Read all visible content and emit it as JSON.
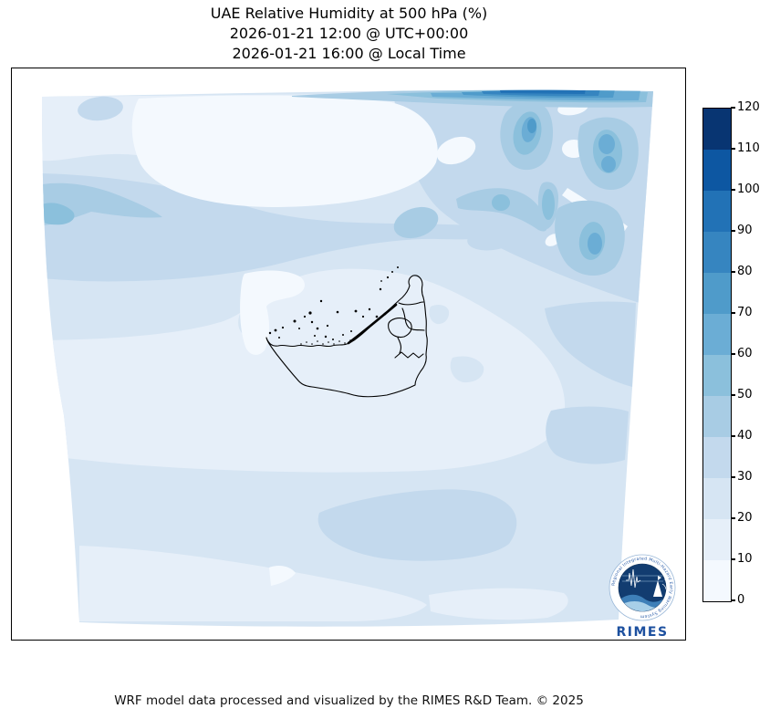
{
  "title": {
    "line1": "UAE Relative Humidity at 500 hPa (%)",
    "line2": "2026-01-21 12:00 @ UTC+00:00",
    "line3": "2026-01-21 16:00 @ Local Time"
  },
  "footer": "WRF model data processed and visualized by the RIMES R&D Team. © 2025",
  "logo": {
    "ring_text": "Regional Integrated Multi-Hazard Early Warning System",
    "wordmark": "RIMES"
  },
  "colorbar": {
    "ticks": [
      0,
      10,
      20,
      30,
      40,
      50,
      60,
      70,
      80,
      90,
      100,
      110,
      120
    ],
    "band_colors_low_to_high": [
      "#f4f9fe",
      "#e6eff9",
      "#d6e5f3",
      "#c3d9ed",
      "#a8cce4",
      "#8bc0dc",
      "#6badd5",
      "#4f9bca",
      "#3685c0",
      "#2272b6",
      "#0d57a2",
      "#083572"
    ]
  },
  "chart_data": {
    "type": "filled_contour_map",
    "variable": "Relative Humidity",
    "pressure_level": "500 hPa",
    "units": "%",
    "region": "UAE",
    "title": "UAE Relative Humidity at 500 hPa (%)",
    "valid_time_utc": "2026-01-21 12:00 @ UTC+00:00",
    "valid_time_local": "2026-01-21 16:00 @ Local Time",
    "contour_levels": [
      0,
      10,
      20,
      30,
      40,
      50,
      60,
      70,
      80,
      90,
      100,
      110,
      120
    ],
    "colorbar_position": "right",
    "palette_colors_low_to_high": [
      "#f4f9fe",
      "#e6eff9",
      "#d6e5f3",
      "#c3d9ed",
      "#a8cce4",
      "#8bc0dc",
      "#6badd5",
      "#4f9bca",
      "#3685c0",
      "#2272b6",
      "#0d57a2",
      "#083572"
    ],
    "field_summary": {
      "background_range_pct": "10-30",
      "max_band_pct": "80-100 along the far north-east top edge",
      "high_humidity_cluster": "40-80 % blobs in the top-right (north-east) of the domain",
      "diagonal_band_upper_left": "30-50 %",
      "around_uae": "0-20 %"
    }
  }
}
